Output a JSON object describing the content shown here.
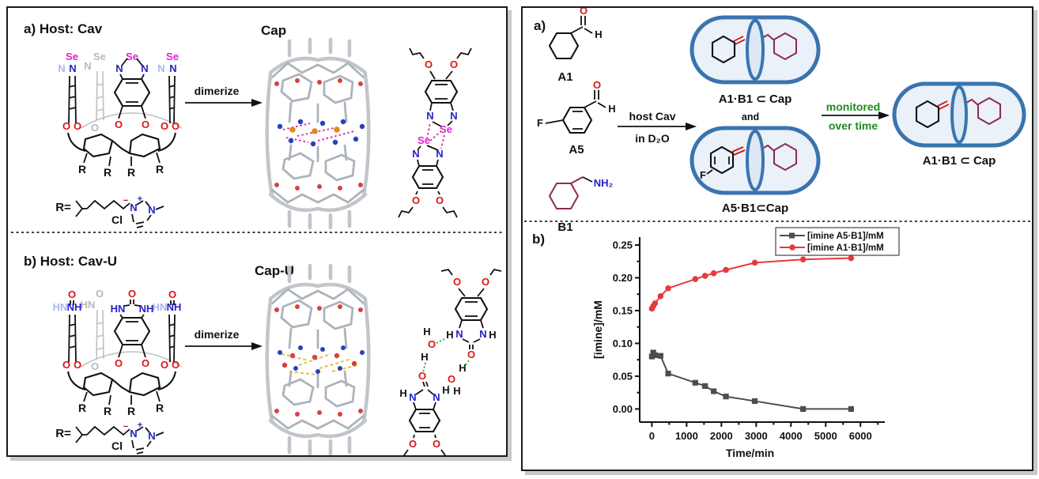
{
  "left": {
    "a_title": "a) Host: Cav",
    "a_product": "Cap",
    "a_arrow": "dimerize",
    "b_title": "b) Host: Cav-U",
    "b_product": "Cap-U",
    "b_arrow": "dimerize",
    "r_prefix": "R=",
    "r": "R",
    "cl": "Cl",
    "plus": "+",
    "minus": "−"
  },
  "right": {
    "a_label": "a)",
    "b_label": "b)",
    "a1": "A1",
    "a5": "A5",
    "b1": "B1",
    "arrow_top": "host Cav",
    "arrow_bottom": "in D₂O",
    "complex1": "A1·B1 ⊂ Cap",
    "conjunction": "and",
    "complex2": "A5·B1⊂Cap",
    "monitor1": "monitored",
    "monitor2": "over time",
    "complex3": "A1·B1 ⊂ Cap"
  },
  "atoms": {
    "se": "Se",
    "n": "N",
    "o": "O",
    "h": "H",
    "hn": "HN",
    "nh": "NH",
    "f": "F",
    "nh2": "NH₂",
    "cl": "Cl"
  },
  "colors": {
    "selenium": "#e020d0",
    "nitrogen": "#2222cc",
    "oxygen": "#dd1515",
    "chloride": "#8b1a2a",
    "capsule_stroke": "#3a74ae",
    "capsule_fill": "#eaf1f8",
    "amine_ring": "#8c2c4a",
    "green_label": "#1e8c1e",
    "series_a5b1": "#4d4d4d",
    "series_a1b1": "#e8393a",
    "hbond_green": "#22a033",
    "chalcogen_magenta": "#cc22aa",
    "water_bridge_yellow": "#e3c13a"
  },
  "chart_data": {
    "type": "line",
    "x": [
      0,
      40,
      90,
      250,
      470,
      1250,
      1530,
      1780,
      2130,
      2960,
      4350,
      5730
    ],
    "series": [
      {
        "name": "[imine A5·B1]/mM",
        "color": "#4d4d4d",
        "marker": "square",
        "values": [
          0.08,
          0.086,
          0.082,
          0.081,
          0.054,
          0.04,
          0.035,
          0.027,
          0.019,
          0.012,
          0.0,
          0.0
        ]
      },
      {
        "name": "[imine A1·B1]/mM",
        "color": "#e8393a",
        "marker": "circle",
        "values": [
          0.153,
          0.157,
          0.161,
          0.172,
          0.184,
          0.198,
          0.203,
          0.207,
          0.212,
          0.223,
          0.228,
          0.23
        ]
      }
    ],
    "title": "",
    "xlabel": "Time/min",
    "ylabel": "[imine]/mM",
    "xlim": [
      -350,
      6700
    ],
    "ylim": [
      -0.02,
      0.262
    ],
    "xticks": [
      0,
      1000,
      2000,
      3000,
      4000,
      5000,
      6000
    ],
    "yticks": [
      0.0,
      0.05,
      0.1,
      0.15,
      0.2,
      0.25
    ],
    "x_minor": 500,
    "y_minor": 0.025,
    "grid": false,
    "legend_position": "top-right"
  }
}
